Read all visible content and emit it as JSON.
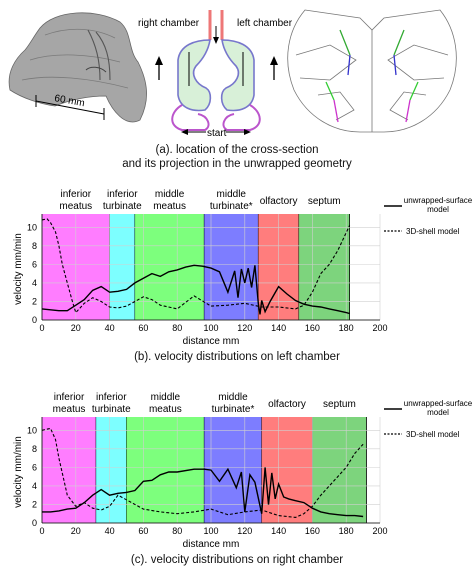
{
  "panel_a": {
    "scale_label": "60 mm",
    "right_chamber_label": "right chamber",
    "left_chamber_label": "left chamber",
    "start_label": "start",
    "caption_line1": "(a). location of the cross-section",
    "caption_line2": "and its projection in the unwrapped geometry"
  },
  "chart_data": [
    {
      "type": "line",
      "caption": "(b). velocity distributions on left chamber",
      "xlabel": "distance mm",
      "ylabel": "velocity mm/min",
      "xlim": [
        0,
        200
      ],
      "ylim": [
        0,
        11
      ],
      "xticks": [
        0,
        20,
        40,
        60,
        80,
        100,
        120,
        140,
        160,
        180,
        200
      ],
      "yticks": [
        0,
        2,
        4,
        6,
        8,
        10
      ],
      "regions": [
        {
          "label": "inferior meatus",
          "start": 0,
          "end": 40,
          "color": "#ff66ff"
        },
        {
          "label": "inferior turbinate",
          "start": 40,
          "end": 55,
          "color": "#66ffff"
        },
        {
          "label": "middle meatus",
          "start": 55,
          "end": 96,
          "color": "#66ff66"
        },
        {
          "label": "middle turbinate*",
          "start": 96,
          "end": 128,
          "color": "#6666ff"
        },
        {
          "label": "olfactory",
          "start": 128,
          "end": 152,
          "color": "#ff6666"
        },
        {
          "label": "septum",
          "start": 152,
          "end": 182,
          "color": "#66cc66"
        }
      ],
      "legend": {
        "placement": "right"
      },
      "series": [
        {
          "name": "unwrapped-surface model",
          "style": "solid",
          "x": [
            0,
            5,
            10,
            15,
            20,
            25,
            30,
            35,
            40,
            45,
            50,
            55,
            60,
            65,
            70,
            75,
            80,
            85,
            90,
            95,
            100,
            105,
            110,
            114,
            116,
            118,
            120,
            122,
            124,
            126,
            128,
            129,
            130,
            132,
            135,
            140,
            145,
            150,
            155,
            160,
            165,
            170,
            175,
            180,
            182
          ],
          "y": [
            1.2,
            1.1,
            1.0,
            1.0,
            1.6,
            2.2,
            3.2,
            3.6,
            3.0,
            3.1,
            3.3,
            4.0,
            4.5,
            5.0,
            4.7,
            5.2,
            5.4,
            5.7,
            5.9,
            5.8,
            5.6,
            5.2,
            3.0,
            5.3,
            2.4,
            5.5,
            4.0,
            5.6,
            3.5,
            5.9,
            1.8,
            0.6,
            2.1,
            0.9,
            2.0,
            3.6,
            2.8,
            2.1,
            1.7,
            1.5,
            1.4,
            1.2,
            1.0,
            0.8,
            0.7
          ]
        },
        {
          "name": "3D-shell model",
          "style": "dashed",
          "x": [
            0,
            3,
            5,
            8,
            10,
            12,
            15,
            18,
            20,
            25,
            30,
            35,
            40,
            45,
            50,
            55,
            60,
            65,
            70,
            80,
            90,
            100,
            110,
            120,
            130,
            140,
            150,
            155,
            160,
            165,
            170,
            175,
            182
          ],
          "y": [
            10.8,
            10.9,
            10.5,
            9.5,
            8.0,
            6.0,
            4.0,
            2.0,
            0.8,
            1.8,
            2.4,
            2.0,
            1.4,
            1.3,
            1.5,
            2.0,
            2.5,
            2.2,
            1.6,
            1.2,
            2.6,
            1.5,
            1.6,
            1.8,
            1.4,
            1.4,
            1.2,
            1.6,
            3.0,
            5.0,
            6.0,
            7.5,
            10.2
          ]
        }
      ]
    },
    {
      "type": "line",
      "caption": "(c). velocity distributions on right chamber",
      "xlabel": "distance mm",
      "ylabel": "velocity mm/min",
      "xlim": [
        0,
        200
      ],
      "ylim": [
        0,
        11
      ],
      "xticks": [
        0,
        20,
        40,
        60,
        80,
        100,
        120,
        140,
        160,
        180,
        200
      ],
      "yticks": [
        0,
        2,
        4,
        6,
        8,
        10
      ],
      "regions": [
        {
          "label": "inferior meatus",
          "start": 0,
          "end": 32,
          "color": "#ff66ff"
        },
        {
          "label": "inferior turbinate",
          "start": 32,
          "end": 50,
          "color": "#66ffff"
        },
        {
          "label": "middle meatus",
          "start": 50,
          "end": 96,
          "color": "#66ff66"
        },
        {
          "label": "middle turbinate*",
          "start": 96,
          "end": 130,
          "color": "#6666ff"
        },
        {
          "label": "olfactory",
          "start": 130,
          "end": 160,
          "color": "#ff6666"
        },
        {
          "label": "septum",
          "start": 160,
          "end": 192,
          "color": "#66cc66"
        }
      ],
      "legend": {
        "placement": "right"
      },
      "series": [
        {
          "name": "unwrapped-surface model",
          "style": "solid",
          "x": [
            0,
            5,
            10,
            15,
            20,
            25,
            30,
            35,
            40,
            45,
            50,
            55,
            60,
            65,
            70,
            75,
            80,
            90,
            96,
            100,
            105,
            110,
            115,
            118,
            120,
            123,
            126,
            130,
            132,
            134,
            136,
            138,
            140,
            143,
            146,
            150,
            155,
            160,
            165,
            170,
            175,
            180,
            185,
            190
          ],
          "y": [
            1.2,
            1.2,
            1.3,
            1.5,
            1.6,
            2.2,
            3.0,
            3.6,
            3.0,
            3.2,
            3.3,
            3.5,
            4.5,
            4.6,
            5.2,
            5.5,
            5.5,
            5.8,
            5.8,
            5.7,
            4.5,
            5.8,
            3.8,
            5.5,
            1.2,
            5.2,
            4.4,
            1.0,
            6.0,
            2.0,
            5.4,
            2.6,
            4.2,
            2.8,
            2.6,
            2.4,
            2.2,
            1.6,
            1.2,
            1.0,
            0.9,
            0.8,
            0.8,
            0.7
          ]
        },
        {
          "name": "3D-shell model",
          "style": "dashed",
          "x": [
            0,
            5,
            8,
            10,
            15,
            20,
            25,
            30,
            35,
            40,
            45,
            50,
            60,
            70,
            80,
            90,
            100,
            110,
            120,
            130,
            140,
            150,
            155,
            160,
            165,
            170,
            175,
            180,
            185,
            190
          ],
          "y": [
            10.0,
            10.2,
            9.0,
            7.0,
            3.0,
            1.8,
            2.2,
            1.6,
            1.4,
            1.8,
            3.0,
            2.5,
            1.5,
            1.2,
            1.0,
            1.2,
            1.5,
            0.9,
            1.2,
            1.4,
            0.8,
            0.6,
            1.0,
            1.8,
            3.0,
            4.0,
            5.0,
            6.0,
            7.5,
            8.5
          ]
        }
      ]
    }
  ]
}
